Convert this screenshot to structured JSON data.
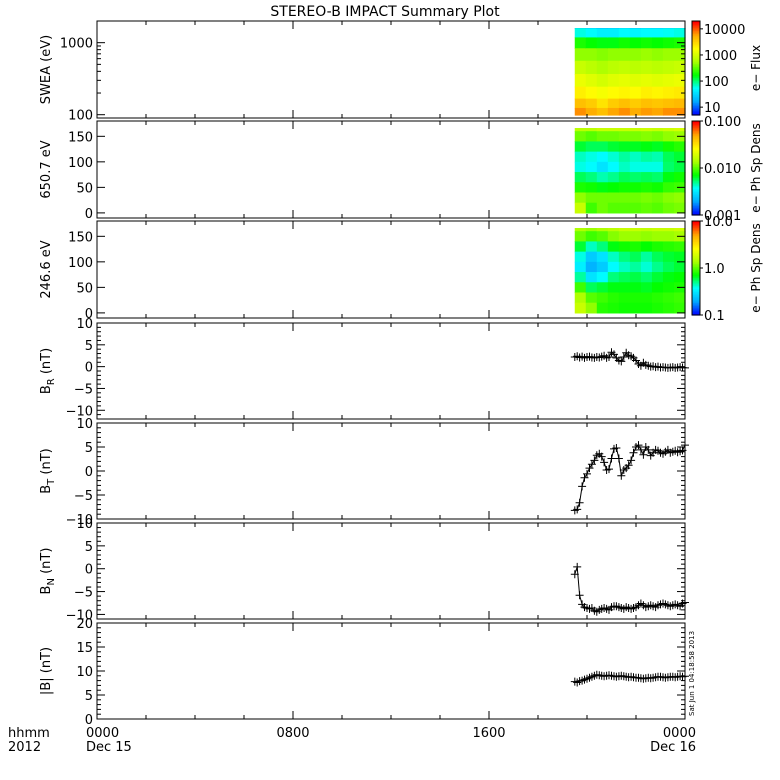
{
  "title": "STEREO-B IMPACT Summary Plot",
  "timestamp": "Sat Jun  1 04:18:58 2013",
  "time_axis": {
    "labels": [
      {
        "hour": 0,
        "line1": "0000",
        "line2": "Dec 15"
      },
      {
        "hour": 8,
        "line1": "0800",
        "line2": ""
      },
      {
        "hour": 16,
        "line1": "1600",
        "line2": ""
      },
      {
        "hour": 24,
        "line1": "0000",
        "line2": "Dec 16"
      }
    ],
    "corner_line1": "hhmm",
    "corner_line2": "2012",
    "range_hours": [
      0,
      24
    ],
    "minor_step_hours": 2
  },
  "colorbars": {
    "flux": {
      "label": "e− Flux",
      "tick_labels": [
        "10000",
        "1000",
        "100",
        "10"
      ],
      "tick_values": [
        10000,
        1000,
        100,
        10
      ],
      "range": [
        5,
        20000
      ],
      "scale": "log"
    },
    "dens650": {
      "label": "e− Ph Sp Dens",
      "tick_labels": [
        "0.100",
        "0.010",
        "0.001"
      ],
      "tick_values": [
        0.1,
        0.01,
        0.001
      ],
      "range": [
        0.001,
        0.1
      ],
      "scale": "log"
    },
    "dens246": {
      "label": "e− Ph Sp Dens",
      "tick_labels": [
        "10.0",
        "1.0",
        "0.1"
      ],
      "tick_values": [
        10,
        1,
        0.1
      ],
      "range": [
        0.1,
        10
      ],
      "scale": "log"
    }
  },
  "colors": {
    "axis": "#000000",
    "palette": [
      "#0000ff",
      "#00aaff",
      "#00ffff",
      "#00ff00",
      "#aaff00",
      "#ffff00",
      "#ffaa00",
      "#ff0000"
    ]
  },
  "chart_data": [
    {
      "type": "heatmap",
      "ylabel": "SWEA (eV)",
      "yscale": "log",
      "ylim": [
        90,
        2000
      ],
      "y_tick_values": [
        100,
        1000
      ],
      "y_tick_labels": [
        "100",
        "1000"
      ],
      "x_range_hours": [
        19.5,
        24
      ],
      "y_rows": [
        1800,
        1400,
        1000,
        700,
        450,
        300,
        200,
        140,
        110
      ],
      "cols": [
        [
          0.15,
          0.3,
          0.45,
          0.55,
          0.62,
          0.68,
          0.74,
          0.82,
          0.88
        ],
        [
          0.12,
          0.28,
          0.43,
          0.55,
          0.6,
          0.66,
          0.72,
          0.8,
          0.85
        ],
        [
          0.1,
          0.26,
          0.42,
          0.54,
          0.58,
          0.64,
          0.7,
          0.76,
          0.82
        ],
        [
          0.12,
          0.26,
          0.42,
          0.55,
          0.6,
          0.66,
          0.72,
          0.8,
          0.86
        ],
        [
          0.14,
          0.28,
          0.44,
          0.55,
          0.61,
          0.67,
          0.73,
          0.82,
          0.88
        ],
        [
          0.12,
          0.27,
          0.43,
          0.55,
          0.6,
          0.66,
          0.72,
          0.8,
          0.85
        ],
        [
          0.13,
          0.28,
          0.44,
          0.56,
          0.61,
          0.67,
          0.74,
          0.82,
          0.87
        ],
        [
          0.12,
          0.28,
          0.43,
          0.55,
          0.6,
          0.66,
          0.73,
          0.81,
          0.86
        ],
        [
          0.14,
          0.29,
          0.44,
          0.56,
          0.61,
          0.67,
          0.74,
          0.82,
          0.88
        ],
        [
          0.16,
          0.3,
          0.45,
          0.56,
          0.62,
          0.68,
          0.75,
          0.83,
          0.88
        ]
      ]
    },
    {
      "type": "heatmap",
      "ylabel": "650.7 eV",
      "yscale": "linear",
      "ylim": [
        -10,
        180
      ],
      "y_tick_values": [
        0,
        50,
        100,
        150
      ],
      "y_tick_labels": [
        "0",
        "50",
        "100",
        "150"
      ],
      "x_range_hours": [
        19.5,
        24
      ],
      "y_rows": [
        170,
        150,
        130,
        110,
        90,
        70,
        50,
        30,
        10
      ],
      "cols": [
        [
          0.6,
          0.52,
          0.4,
          0.32,
          0.3,
          0.38,
          0.45,
          0.55,
          0.62
        ],
        [
          0.6,
          0.5,
          0.38,
          0.3,
          0.28,
          0.36,
          0.44,
          0.52,
          0.48
        ],
        [
          0.62,
          0.52,
          0.38,
          0.28,
          0.24,
          0.33,
          0.42,
          0.52,
          0.52
        ],
        [
          0.62,
          0.52,
          0.4,
          0.31,
          0.28,
          0.35,
          0.43,
          0.52,
          0.5
        ],
        [
          0.62,
          0.53,
          0.41,
          0.34,
          0.32,
          0.38,
          0.44,
          0.52,
          0.5
        ],
        [
          0.62,
          0.53,
          0.41,
          0.32,
          0.3,
          0.37,
          0.44,
          0.52,
          0.5
        ],
        [
          0.63,
          0.54,
          0.42,
          0.34,
          0.3,
          0.38,
          0.45,
          0.53,
          0.51
        ],
        [
          0.62,
          0.53,
          0.41,
          0.33,
          0.3,
          0.37,
          0.44,
          0.52,
          0.5
        ],
        [
          0.63,
          0.55,
          0.44,
          0.38,
          0.37,
          0.42,
          0.47,
          0.54,
          0.52
        ],
        [
          0.64,
          0.56,
          0.46,
          0.4,
          0.39,
          0.44,
          0.48,
          0.55,
          0.53
        ]
      ]
    },
    {
      "type": "heatmap",
      "ylabel": "246.6 eV",
      "yscale": "linear",
      "ylim": [
        -10,
        180
      ],
      "y_tick_values": [
        0,
        50,
        100,
        150
      ],
      "y_tick_labels": [
        "0",
        "50",
        "100",
        "150"
      ],
      "x_range_hours": [
        19.5,
        24
      ],
      "y_rows": [
        170,
        150,
        130,
        110,
        90,
        70,
        50,
        30,
        10
      ],
      "cols": [
        [
          0.58,
          0.52,
          0.4,
          0.3,
          0.26,
          0.34,
          0.48,
          0.58,
          0.62
        ],
        [
          0.56,
          0.48,
          0.32,
          0.2,
          0.16,
          0.24,
          0.38,
          0.5,
          0.55
        ],
        [
          0.58,
          0.5,
          0.36,
          0.24,
          0.2,
          0.28,
          0.4,
          0.48,
          0.46
        ],
        [
          0.6,
          0.54,
          0.42,
          0.32,
          0.28,
          0.36,
          0.42,
          0.46,
          0.45
        ],
        [
          0.62,
          0.56,
          0.44,
          0.36,
          0.32,
          0.38,
          0.42,
          0.45,
          0.44
        ],
        [
          0.62,
          0.56,
          0.45,
          0.38,
          0.34,
          0.39,
          0.42,
          0.45,
          0.44
        ],
        [
          0.61,
          0.55,
          0.43,
          0.34,
          0.31,
          0.37,
          0.41,
          0.45,
          0.44
        ],
        [
          0.62,
          0.56,
          0.45,
          0.38,
          0.35,
          0.4,
          0.43,
          0.46,
          0.45
        ],
        [
          0.62,
          0.56,
          0.46,
          0.4,
          0.38,
          0.42,
          0.44,
          0.47,
          0.46
        ],
        [
          0.63,
          0.57,
          0.47,
          0.41,
          0.4,
          0.43,
          0.45,
          0.48,
          0.47
        ]
      ]
    },
    {
      "type": "line",
      "ylabel": "B",
      "ylabel_sub": "R",
      "ylabel_unit": "(nT)",
      "ylim": [
        -12,
        10
      ],
      "y_tick_values": [
        -10,
        -5,
        0,
        5,
        10
      ],
      "y_tick_labels": [
        "−10",
        "−5",
        "0",
        "5",
        "10"
      ],
      "x": [
        19.5,
        19.6,
        19.7,
        19.8,
        19.9,
        20.0,
        20.1,
        20.2,
        20.3,
        20.4,
        20.5,
        20.6,
        20.7,
        20.8,
        20.9,
        21.0,
        21.1,
        21.2,
        21.3,
        21.4,
        21.5,
        21.6,
        21.7,
        21.8,
        21.9,
        22.0,
        22.1,
        22.2,
        22.3,
        22.4,
        22.5,
        22.6,
        22.7,
        22.8,
        22.9,
        23.0,
        23.1,
        23.2,
        23.3,
        23.4,
        23.5,
        23.6,
        23.7,
        23.8,
        23.9,
        24.0
      ],
      "y": [
        2.2,
        2.4,
        2.1,
        2.3,
        2.0,
        2.2,
        2.3,
        2.1,
        2.0,
        2.2,
        2.1,
        2.3,
        2.5,
        2.0,
        2.2,
        3.3,
        2.8,
        2.0,
        1.4,
        1.2,
        2.2,
        3.2,
        2.6,
        2.4,
        2.0,
        1.4,
        0.6,
        0.2,
        0.9,
        0.4,
        0.2,
        0.0,
        0.1,
        -0.1,
        0.0,
        -0.2,
        -0.1,
        -0.2,
        -0.3,
        -0.2,
        -0.1,
        -0.3,
        -0.2,
        -0.1,
        -0.2,
        -0.3
      ]
    },
    {
      "type": "line",
      "ylabel": "B",
      "ylabel_sub": "T",
      "ylabel_unit": "(nT)",
      "ylim": [
        -10,
        10
      ],
      "y_tick_values": [
        -10,
        -5,
        0,
        5,
        10
      ],
      "y_tick_labels": [
        "−10",
        "−5",
        "0",
        "5",
        "10"
      ],
      "x": [
        19.5,
        19.6,
        19.7,
        19.8,
        19.9,
        20.0,
        20.1,
        20.2,
        20.3,
        20.4,
        20.5,
        20.6,
        20.7,
        20.8,
        20.9,
        21.0,
        21.1,
        21.2,
        21.3,
        21.4,
        21.5,
        21.6,
        21.7,
        21.8,
        21.9,
        22.0,
        22.1,
        22.2,
        22.3,
        22.4,
        22.5,
        22.6,
        22.7,
        22.8,
        22.9,
        23.0,
        23.1,
        23.2,
        23.3,
        23.4,
        23.5,
        23.6,
        23.7,
        23.8,
        23.9,
        24.0
      ],
      "y": [
        -8.2,
        -8.0,
        -6.6,
        -3.2,
        -1.4,
        -0.6,
        0.6,
        1.4,
        2.2,
        3.3,
        3.6,
        3.0,
        1.8,
        0.2,
        0.4,
        2.6,
        4.6,
        4.8,
        2.6,
        -1.0,
        0.2,
        0.6,
        1.2,
        2.2,
        3.8,
        5.0,
        5.4,
        4.4,
        3.4,
        5.0,
        4.4,
        3.2,
        3.8,
        4.4,
        4.2,
        3.8,
        3.6,
        4.0,
        4.4,
        3.8,
        4.0,
        4.2,
        3.9,
        4.1,
        4.3,
        5.4
      ]
    },
    {
      "type": "line",
      "ylabel": "B",
      "ylabel_sub": "N",
      "ylabel_unit": "(nT)",
      "ylim": [
        -11,
        10
      ],
      "y_tick_values": [
        -10,
        -5,
        0,
        5,
        10
      ],
      "y_tick_labels": [
        "−10",
        "−5",
        "0",
        "5",
        "10"
      ],
      "x": [
        19.5,
        19.6,
        19.7,
        19.8,
        19.9,
        20.0,
        20.1,
        20.2,
        20.3,
        20.4,
        20.5,
        20.6,
        20.7,
        20.8,
        20.9,
        21.0,
        21.1,
        21.2,
        21.3,
        21.4,
        21.5,
        21.6,
        21.7,
        21.8,
        21.9,
        22.0,
        22.1,
        22.2,
        22.3,
        22.4,
        22.5,
        22.6,
        22.7,
        22.8,
        22.9,
        23.0,
        23.1,
        23.2,
        23.3,
        23.4,
        23.5,
        23.6,
        23.7,
        23.8,
        23.9,
        24.0
      ],
      "y": [
        -1.2,
        0.4,
        -5.8,
        -7.8,
        -8.4,
        -8.6,
        -8.8,
        -8.6,
        -9.2,
        -9.4,
        -9.0,
        -8.8,
        -8.6,
        -8.8,
        -9.0,
        -8.4,
        -8.2,
        -8.2,
        -8.4,
        -8.6,
        -8.8,
        -8.4,
        -8.6,
        -8.8,
        -8.6,
        -8.4,
        -8.0,
        -7.6,
        -8.0,
        -8.4,
        -8.2,
        -8.0,
        -8.2,
        -8.4,
        -8.0,
        -7.8,
        -7.6,
        -7.8,
        -8.0,
        -8.2,
        -8.0,
        -7.8,
        -8.0,
        -8.2,
        -7.6,
        -7.4
      ]
    },
    {
      "type": "line",
      "ylabel": "|B| (nT)",
      "ylim": [
        0,
        20
      ],
      "y_tick_values": [
        0,
        5,
        10,
        15,
        20
      ],
      "y_tick_labels": [
        "0",
        "5",
        "10",
        "15",
        "20"
      ],
      "x": [
        19.5,
        19.6,
        19.7,
        19.8,
        19.9,
        20.0,
        20.1,
        20.2,
        20.3,
        20.4,
        20.5,
        20.6,
        20.7,
        20.8,
        20.9,
        21.0,
        21.1,
        21.2,
        21.3,
        21.4,
        21.5,
        21.6,
        21.7,
        21.8,
        21.9,
        22.0,
        22.1,
        22.2,
        22.3,
        22.4,
        22.5,
        22.6,
        22.7,
        22.8,
        22.9,
        23.0,
        23.1,
        23.2,
        23.3,
        23.4,
        23.5,
        23.6,
        23.7,
        23.8,
        23.9,
        24.0
      ],
      "y": [
        7.8,
        7.6,
        7.9,
        8.0,
        8.2,
        8.4,
        8.6,
        8.8,
        9.0,
        9.2,
        9.1,
        9.0,
        8.9,
        9.0,
        9.1,
        9.0,
        8.9,
        8.8,
        8.9,
        9.0,
        8.9,
        8.8,
        8.7,
        8.8,
        8.7,
        8.6,
        8.6,
        8.5,
        8.4,
        8.5,
        8.6,
        8.5,
        8.6,
        8.7,
        8.8,
        8.8,
        8.7,
        8.6,
        8.7,
        8.8,
        8.8,
        8.7,
        8.8,
        8.9,
        8.8,
        8.9
      ]
    }
  ]
}
